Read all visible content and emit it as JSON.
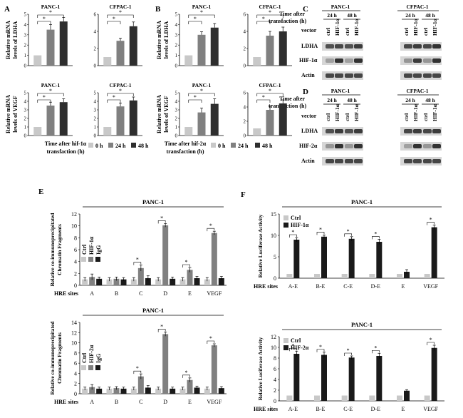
{
  "figure": {
    "panel_letters": [
      "A",
      "B",
      "C",
      "D",
      "E",
      "F"
    ],
    "colors": {
      "light": "#c8c8c8",
      "mid": "#808080",
      "dark": "#2e2e2e",
      "black": "#1a1a1a",
      "blot_bg": "#d6d6d6"
    }
  },
  "legend_ab": {
    "a_title": [
      "Time after hif-1α",
      "transfaction (h)"
    ],
    "b_title": [
      "Time after hif-2α",
      "transfaction (h)"
    ],
    "entries": [
      "0 h",
      "24 h",
      "48 h"
    ]
  },
  "blots": {
    "time_label": [
      "Time after",
      "transfaction (h)"
    ],
    "cells": [
      "PANC-1",
      "CFPAC-1"
    ],
    "times": [
      "24 h",
      "48 h"
    ],
    "vector_label": "vector",
    "c_lanes": [
      "ctrl",
      "HIF-1α",
      "ctrl",
      "HIF-1α"
    ],
    "d_lanes": [
      "ctrl",
      "HIF-1α",
      "ctrl",
      "HIF-1α"
    ],
    "c_rows": [
      "LDHA",
      "HIF-1α",
      "Actin"
    ],
    "d_rows": [
      "LDHA",
      "HIF-2α",
      "Actin"
    ]
  },
  "chart_data": [
    {
      "id": "A-PANC1-LDHA",
      "type": "bar",
      "title": "PANC-1",
      "ylabel": [
        "Relative mRNA",
        "levels of LDHA"
      ],
      "categories": [
        "0 h",
        "24 h",
        "48 h"
      ],
      "values": [
        1,
        3.5,
        4.3
      ],
      "errors": [
        0,
        0.5,
        0.4
      ],
      "ylim": [
        0,
        5
      ],
      "yticks": [
        "0",
        "1",
        "2",
        "3",
        "4",
        "5"
      ],
      "sig": [
        "*",
        "*"
      ]
    },
    {
      "id": "A-CFPAC1-LDHA",
      "type": "bar",
      "title": "CFPAC-1",
      "ylabel": [],
      "categories": [
        "0 h",
        "24 h",
        "48 h"
      ],
      "values": [
        1,
        2.9,
        4.6
      ],
      "errors": [
        0,
        0.3,
        0.5
      ],
      "ylim": [
        0,
        6
      ],
      "yticks": [
        "0",
        "2",
        "4",
        "6"
      ],
      "sig": [
        "*",
        "*"
      ]
    },
    {
      "id": "A-PANC1-VEGF",
      "type": "bar",
      "title": "PANC-1",
      "ylabel": [
        "Relative mRNA",
        "levels of VEGF"
      ],
      "categories": [
        "0 h",
        "24 h",
        "48 h"
      ],
      "values": [
        1,
        3.5,
        3.9
      ],
      "errors": [
        0,
        0.4,
        0.4
      ],
      "ylim": [
        0,
        5
      ],
      "yticks": [
        "0",
        "1",
        "2",
        "3",
        "4",
        "5"
      ],
      "sig": [
        "*",
        "*"
      ]
    },
    {
      "id": "A-CFPAC1-VEGF",
      "type": "bar",
      "title": "CFPAC-1",
      "ylabel": [],
      "categories": [
        "0 h",
        "24 h",
        "48 h"
      ],
      "values": [
        1,
        3.4,
        4.1
      ],
      "errors": [
        0,
        0.4,
        0.4
      ],
      "ylim": [
        0,
        5
      ],
      "yticks": [
        "0",
        "1",
        "2",
        "3",
        "4",
        "5"
      ],
      "sig": [
        "*",
        "*"
      ]
    },
    {
      "id": "B-PANC1-LDHA",
      "type": "bar",
      "title": "PANC-1",
      "ylabel": [
        "Relative mRNA",
        "levels of LDHA"
      ],
      "categories": [
        "0 h",
        "24 h",
        "48 h"
      ],
      "values": [
        1,
        3.0,
        3.7
      ],
      "errors": [
        0,
        0.3,
        0.4
      ],
      "ylim": [
        0,
        5
      ],
      "yticks": [
        "0",
        "1",
        "2",
        "3",
        "4",
        "5"
      ],
      "sig": [
        "*",
        "*"
      ]
    },
    {
      "id": "B-CFPAC1-LDHA",
      "type": "bar",
      "title": "CFPAC-1",
      "ylabel": [],
      "categories": [
        "0 h",
        "24 h",
        "48 h"
      ],
      "values": [
        1,
        3.5,
        4.0
      ],
      "errors": [
        0,
        0.5,
        0.5
      ],
      "ylim": [
        0,
        6
      ],
      "yticks": [
        "0",
        "2",
        "4",
        "6"
      ],
      "sig": [
        "*",
        "*"
      ]
    },
    {
      "id": "B-PANC1-VEGF",
      "type": "bar",
      "title": "PANC-1",
      "ylabel": [
        "Relative mRNA",
        "levels of VEGF"
      ],
      "categories": [
        "0 h",
        "24 h",
        "48 h"
      ],
      "values": [
        1,
        2.7,
        3.7
      ],
      "errors": [
        0,
        0.5,
        0.6
      ],
      "ylim": [
        0,
        5
      ],
      "yticks": [
        "0",
        "1",
        "2",
        "3",
        "4",
        "5"
      ],
      "sig": [
        "*",
        "*"
      ]
    },
    {
      "id": "B-CFPAC1-VEGF",
      "type": "bar",
      "title": "CFPAC-1",
      "ylabel": [],
      "categories": [
        "0 h",
        "24 h",
        "48 h"
      ],
      "values": [
        1,
        3.6,
        4.5
      ],
      "errors": [
        0,
        0.5,
        0.5
      ],
      "ylim": [
        0,
        6
      ],
      "yticks": [
        "0",
        "2",
        "4",
        "6"
      ],
      "sig": [
        "*",
        "*"
      ]
    },
    {
      "id": "E-top",
      "type": "bar",
      "title": "PANC-1",
      "ylabel": [
        "Relative co-immunoprecipitated",
        "Chromatin Fragments"
      ],
      "xlabel": "HRE sites",
      "categories": [
        "A",
        "B",
        "C",
        "D",
        "E",
        "VEGF"
      ],
      "ylim": [
        0,
        12
      ],
      "yticks": [
        "0",
        "2",
        "4",
        "6",
        "8",
        "10",
        "12"
      ],
      "legend": [
        "Ctrl",
        "HIF-1α",
        "IgG"
      ],
      "series": [
        {
          "name": "Ctrl",
          "values": [
            1,
            1,
            1,
            1,
            1,
            1
          ],
          "errors": [
            0.3,
            0.3,
            0.3,
            0.3,
            0.3,
            0.3
          ]
        },
        {
          "name": "HIF-1α",
          "values": [
            1.4,
            1.1,
            2.9,
            10.1,
            2.6,
            8.8
          ],
          "errors": [
            0.5,
            0.3,
            0.5,
            0.3,
            0.4,
            0.3
          ]
        },
        {
          "name": "IgG",
          "values": [
            1.1,
            1.0,
            1.2,
            1.1,
            1.2,
            1.2
          ],
          "errors": [
            0.3,
            0.3,
            0.4,
            0.3,
            0.3,
            0.3
          ]
        }
      ],
      "sig_categories": [
        "C",
        "D",
        "E",
        "VEGF"
      ],
      "sig": "*"
    },
    {
      "id": "E-bottom",
      "type": "bar",
      "title": "PANC-1",
      "ylabel": [
        "Relative co-immunoprecipitated",
        "Chromatin Fragments"
      ],
      "xlabel": "HRE sites",
      "categories": [
        "A",
        "B",
        "C",
        "D",
        "E",
        "VEGF"
      ],
      "ylim": [
        0,
        14
      ],
      "yticks": [
        "0",
        "2",
        "4",
        "6",
        "8",
        "10",
        "12",
        "14"
      ],
      "legend": [
        "Ctrl",
        "HIF-2α",
        "IgG"
      ],
      "series": [
        {
          "name": "Ctrl",
          "values": [
            1,
            1,
            1,
            1,
            1,
            1
          ],
          "errors": [
            0.3,
            0.3,
            0.3,
            0.3,
            0.3,
            0.3
          ]
        },
        {
          "name": "HIF-2α",
          "values": [
            1.3,
            1.1,
            3.4,
            11.7,
            2.7,
            9.5
          ],
          "errors": [
            0.5,
            0.3,
            0.5,
            0.4,
            0.4,
            0.3
          ]
        },
        {
          "name": "IgG",
          "values": [
            1.0,
            1.0,
            1.2,
            1.0,
            1.2,
            1.1
          ],
          "errors": [
            0.3,
            0.3,
            0.4,
            0.3,
            0.3,
            0.3
          ]
        }
      ],
      "sig_categories": [
        "C",
        "D",
        "E",
        "VEGF"
      ],
      "sig": "*"
    },
    {
      "id": "F-top",
      "type": "bar",
      "title": "PANC-1",
      "ylabel": [
        "Relative Luciferase Activity"
      ],
      "xlabel": "HRE sites",
      "categories": [
        "A-E",
        "B-E",
        "C-E",
        "D-E",
        "E",
        "VEGF"
      ],
      "ylim": [
        0,
        15
      ],
      "yticks": [
        "0",
        "5",
        "10",
        "15"
      ],
      "legend": [
        "Ctrl",
        "HIF-1α"
      ],
      "series": [
        {
          "name": "Ctrl",
          "values": [
            1,
            1,
            1,
            1,
            1,
            1
          ],
          "errors": [
            0,
            0,
            0,
            0,
            0,
            0
          ]
        },
        {
          "name": "HIF-1α",
          "values": [
            9.0,
            9.7,
            9.2,
            8.5,
            1.5,
            11.9
          ],
          "errors": [
            0.5,
            0.4,
            0.5,
            0.6,
            0.5,
            0.5
          ]
        }
      ],
      "sig_categories": [
        "A-E",
        "B-E",
        "C-E",
        "D-E",
        "VEGF"
      ],
      "sig": "*"
    },
    {
      "id": "F-bottom",
      "type": "bar",
      "title": "PANC-1",
      "ylabel": [
        "Relative Luciferase Activity"
      ],
      "xlabel": "HRE sites",
      "categories": [
        "A-E",
        "B-E",
        "C-E",
        "D-E",
        "E",
        "VEGF"
      ],
      "ylim": [
        0,
        12
      ],
      "yticks": [
        "0",
        "2",
        "4",
        "6",
        "8",
        "10",
        "12"
      ],
      "legend": [
        "Ctrl",
        "HIF-2α"
      ],
      "series": [
        {
          "name": "Ctrl",
          "values": [
            1,
            1,
            1,
            1,
            1,
            1
          ],
          "errors": [
            0,
            0,
            0,
            0,
            0,
            0
          ]
        },
        {
          "name": "HIF-2α",
          "values": [
            8.8,
            8.6,
            8.1,
            8.4,
            1.9,
            9.9
          ],
          "errors": [
            0.5,
            0.5,
            0.3,
            0.5,
            0.2,
            0.5
          ]
        }
      ],
      "sig_categories": [
        "A-E",
        "B-E",
        "C-E",
        "D-E",
        "VEGF"
      ],
      "sig": "*"
    }
  ]
}
